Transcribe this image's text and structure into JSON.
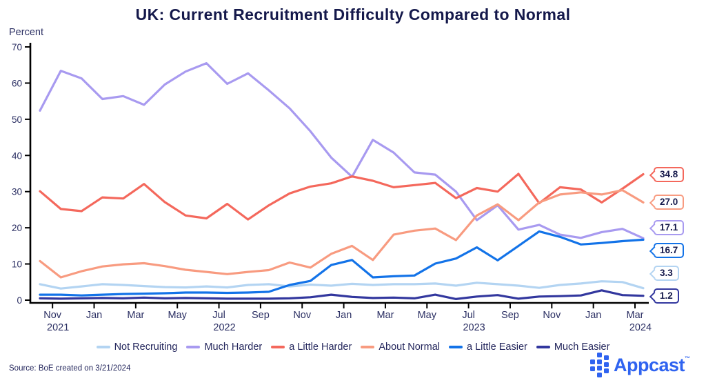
{
  "title": "UK: Current Recruitment Difficulty Compared to Normal",
  "y_axis_label": "Percent",
  "source": "Source: BoE created on 3/21/2024",
  "logo": {
    "text": "Appcast",
    "tm": "™"
  },
  "colors": {
    "axis": "#000000",
    "tick_text": "#2b2f63",
    "title_text": "#15194b",
    "logo_blue": "#2f63f0"
  },
  "chart_data": {
    "type": "line",
    "title": "UK: Current Recruitment Difficulty Compared to Normal",
    "xlabel": "",
    "ylabel": "Percent",
    "ylim": [
      0,
      70
    ],
    "yticks": [
      0,
      10,
      20,
      30,
      40,
      50,
      60,
      70
    ],
    "grid": false,
    "legend_position": "bottom",
    "x": [
      "Oct 2021",
      "Nov 2021",
      "Dec 2021",
      "Jan 2022",
      "Feb 2022",
      "Mar 2022",
      "Apr 2022",
      "May 2022",
      "Jun 2022",
      "Jul 2022",
      "Aug 2022",
      "Sep 2022",
      "Oct 2022",
      "Nov 2022",
      "Dec 2022",
      "Jan 2023",
      "Feb 2023",
      "Mar 2023",
      "Apr 2023",
      "May 2023",
      "Jun 2023",
      "Jul 2023",
      "Aug 2023",
      "Sep 2023",
      "Oct 2023",
      "Nov 2023",
      "Dec 2023",
      "Jan 2024",
      "Feb 2024",
      "Mar 2024"
    ],
    "x_ticks": [
      {
        "month": "Nov",
        "year": "2021"
      },
      {
        "month": "Jan",
        "year": ""
      },
      {
        "month": "Mar",
        "year": ""
      },
      {
        "month": "May",
        "year": ""
      },
      {
        "month": "Jul",
        "year": "2022"
      },
      {
        "month": "Sep",
        "year": ""
      },
      {
        "month": "Nov",
        "year": ""
      },
      {
        "month": "Jan",
        "year": ""
      },
      {
        "month": "Mar",
        "year": ""
      },
      {
        "month": "May",
        "year": ""
      },
      {
        "month": "Jul",
        "year": "2023"
      },
      {
        "month": "Sep",
        "year": ""
      },
      {
        "month": "Nov",
        "year": ""
      },
      {
        "month": "Jan",
        "year": ""
      },
      {
        "month": "Mar",
        "year": "2024"
      }
    ],
    "series": [
      {
        "name": "Not Recruiting",
        "color": "#b3d4f2",
        "end_label": "3.3",
        "values": [
          4.4,
          3.2,
          3.8,
          4.4,
          4.2,
          3.9,
          3.6,
          3.5,
          3.8,
          3.5,
          4.2,
          4.4,
          3.8,
          4.3,
          4.0,
          4.5,
          4.2,
          4.4,
          4.4,
          4.6,
          4.0,
          4.8,
          4.4,
          4.0,
          3.4,
          4.2,
          4.6,
          5.2,
          5.0,
          3.3
        ]
      },
      {
        "name": "Much Harder",
        "color": "#a89af0",
        "end_label": "17.1",
        "values": [
          52.4,
          63.4,
          61.3,
          55.6,
          56.4,
          54.0,
          59.6,
          63.2,
          65.5,
          59.8,
          62.7,
          58.0,
          53.0,
          46.7,
          39.4,
          34.1,
          44.3,
          40.8,
          35.3,
          34.7,
          30.0,
          22.1,
          26.2,
          19.5,
          20.8,
          18.1,
          17.2,
          18.8,
          19.7,
          17.1
        ]
      },
      {
        "name": "a Little Harder",
        "color": "#f4685c",
        "end_label": "34.8",
        "values": [
          30.1,
          25.2,
          24.6,
          28.4,
          28.1,
          32.1,
          27.1,
          23.4,
          22.6,
          26.6,
          22.3,
          26.2,
          29.5,
          31.4,
          32.3,
          34.2,
          33.0,
          31.2,
          31.8,
          32.4,
          28.2,
          31.0,
          30.0,
          34.9,
          26.8,
          31.2,
          30.6,
          27.0,
          30.8,
          34.8
        ]
      },
      {
        "name": "About Normal",
        "color": "#f89b80",
        "end_label": "27.0",
        "values": [
          10.8,
          6.3,
          8.0,
          9.3,
          9.9,
          10.2,
          9.4,
          8.4,
          7.8,
          7.2,
          7.8,
          8.3,
          10.4,
          9.0,
          12.8,
          15.0,
          11.1,
          18.1,
          19.2,
          19.8,
          16.6,
          23.4,
          26.5,
          22.1,
          27.0,
          29.2,
          29.8,
          29.2,
          30.4,
          27.0
        ]
      },
      {
        "name": "a Little Easier",
        "color": "#1373e8",
        "end_label": "16.7",
        "values": [
          1.5,
          1.5,
          1.3,
          1.5,
          1.7,
          1.8,
          1.9,
          2.1,
          2.1,
          2.0,
          2.1,
          2.3,
          4.2,
          5.3,
          9.7,
          11.1,
          6.3,
          6.6,
          6.8,
          10.1,
          11.5,
          14.6,
          11.0,
          15.0,
          19.0,
          17.5,
          15.4,
          15.8,
          16.3,
          16.7
        ]
      },
      {
        "name": "Much Easier",
        "color": "#32379e",
        "end_label": "1.2",
        "values": [
          0.5,
          0.4,
          0.5,
          0.6,
          0.5,
          0.7,
          0.5,
          0.6,
          0.5,
          0.4,
          0.4,
          0.4,
          0.5,
          0.8,
          1.5,
          0.9,
          0.6,
          0.7,
          0.5,
          1.5,
          0.3,
          1.0,
          1.4,
          0.4,
          1.0,
          1.1,
          1.3,
          2.7,
          1.4,
          1.2
        ]
      }
    ]
  }
}
